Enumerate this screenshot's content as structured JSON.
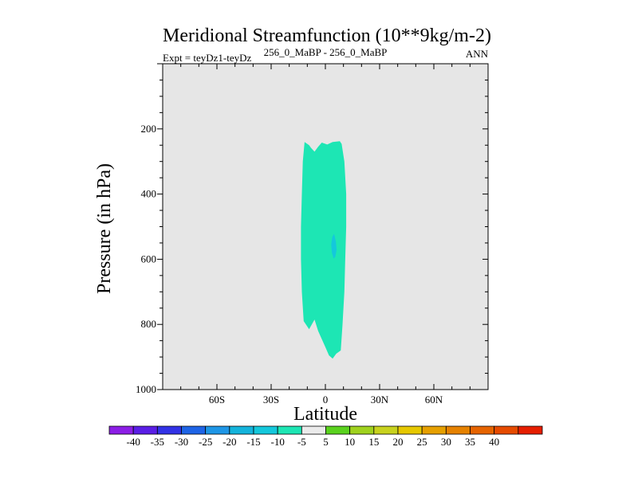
{
  "chart_data": {
    "type": "contour",
    "title": "Meridional Streamfunction (10**9kg/m-2)",
    "subtitle_left": "Expt = teyDz1-teyDz",
    "subtitle_center": "256_0_MaBP - 256_0_MaBP",
    "subtitle_right": "ANN",
    "xlabel": "Latitude",
    "ylabel": "Pressure (in hPa)",
    "xlim": [
      -90,
      90
    ],
    "ylim": [
      0,
      1000
    ],
    "x_ticks": [
      {
        "value": -60,
        "label": "60S"
      },
      {
        "value": -30,
        "label": "30S"
      },
      {
        "value": 0,
        "label": "0"
      },
      {
        "value": 30,
        "label": "30N"
      },
      {
        "value": 60,
        "label": "60N"
      }
    ],
    "y_ticks": [
      {
        "value": 200,
        "label": "200"
      },
      {
        "value": 400,
        "label": "400"
      },
      {
        "value": 600,
        "label": "600"
      },
      {
        "value": 800,
        "label": "800"
      },
      {
        "value": 1000,
        "label": "1000"
      }
    ],
    "background_color": "#e6e6e6",
    "regions": [
      {
        "name": "cell-minus-10-to-minus-5",
        "range": [
          -10,
          -5
        ],
        "color": "#1de6b4",
        "points": [
          [
            -11.5,
            240
          ],
          [
            -9,
            250
          ],
          [
            -8,
            258
          ],
          [
            -6,
            270
          ],
          [
            -4,
            255
          ],
          [
            -2,
            242
          ],
          [
            1,
            248
          ],
          [
            4,
            240
          ],
          [
            8,
            238
          ],
          [
            9,
            246
          ],
          [
            10.5,
            300
          ],
          [
            11.5,
            400
          ],
          [
            11.5,
            500
          ],
          [
            11,
            600
          ],
          [
            10.5,
            700
          ],
          [
            9.5,
            800
          ],
          [
            8.5,
            880
          ],
          [
            6,
            890
          ],
          [
            4,
            905
          ],
          [
            2,
            895
          ],
          [
            0,
            870
          ],
          [
            -4,
            820
          ],
          [
            -6,
            785
          ],
          [
            -9,
            815
          ],
          [
            -12,
            790
          ],
          [
            -13,
            700
          ],
          [
            -13.5,
            600
          ],
          [
            -13.5,
            500
          ],
          [
            -13,
            400
          ],
          [
            -12.5,
            300
          ]
        ]
      },
      {
        "name": "cell-minus-15-to-minus-10",
        "range": [
          -15,
          -10
        ],
        "color": "#14c8dc",
        "points": [
          [
            4.8,
            522
          ],
          [
            5.8,
            545
          ],
          [
            6.2,
            570
          ],
          [
            5.5,
            592
          ],
          [
            4.6,
            598
          ],
          [
            3.6,
            580
          ],
          [
            3.2,
            555
          ],
          [
            3.8,
            532
          ]
        ]
      }
    ],
    "colorbar": {
      "colors": [
        "#8c1ee6",
        "#5a1ee6",
        "#3232e6",
        "#1e64e6",
        "#1e96e6",
        "#14b4dc",
        "#14c8dc",
        "#1de6b4",
        "#ebebeb",
        "#5ad21e",
        "#a0d21e",
        "#c8d21e",
        "#e6c800",
        "#e6a000",
        "#e68200",
        "#e66400",
        "#e64b00",
        "#e61e00"
      ],
      "labels": [
        "-40",
        "-35",
        "-30",
        "-25",
        "-20",
        "-15",
        "-10",
        "-5",
        "5",
        "10",
        "15",
        "20",
        "25",
        "30",
        "35",
        "40"
      ]
    }
  }
}
